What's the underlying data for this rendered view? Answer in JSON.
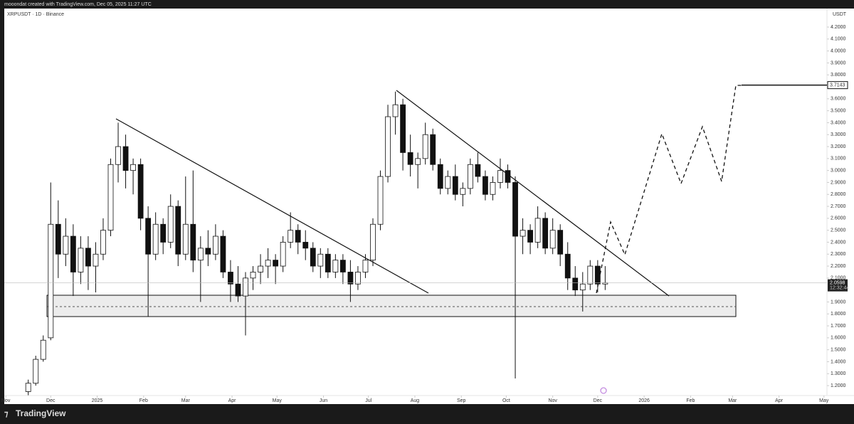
{
  "header": {
    "watermark": "mooondat created with TradingView.com, Dec 05, 2025 11:27 UTC",
    "symbol": "XRPUSDT · 1D · Binance",
    "currency": "USDT",
    "brand": "TradingView"
  },
  "chart_data": {
    "type": "candlestick",
    "x": [
      15,
      20,
      25,
      30,
      35,
      40,
      45,
      50,
      55,
      60,
      65,
      70,
      75,
      80,
      85,
      90,
      95,
      100,
      105,
      110,
      115,
      120,
      125,
      130,
      135,
      140,
      145,
      150,
      155,
      160,
      165,
      170,
      175,
      180,
      185,
      190,
      195,
      200,
      205,
      210,
      215,
      220,
      225,
      230,
      235,
      240,
      245,
      250,
      255,
      260,
      265,
      270,
      275,
      280,
      285,
      290,
      295,
      300,
      305,
      310,
      315,
      320,
      325,
      330,
      335,
      340,
      345,
      350,
      355,
      360,
      365,
      370,
      375,
      380,
      385,
      390,
      395,
      400
    ],
    "open": [
      1.15,
      1.22,
      1.42,
      1.6,
      2.55,
      2.3,
      2.45,
      2.15,
      2.35,
      2.2,
      2.3,
      2.5,
      3.05,
      3.2,
      3.0,
      3.05,
      2.6,
      2.3,
      2.55,
      2.4,
      2.7,
      2.3,
      2.55,
      2.25,
      2.35,
      2.3,
      2.45,
      2.15,
      2.05,
      1.95,
      2.1,
      2.15,
      2.2,
      2.25,
      2.2,
      2.4,
      2.5,
      2.4,
      2.35,
      2.2,
      2.3,
      2.15,
      2.25,
      2.15,
      2.05,
      2.15,
      2.25,
      2.55,
      2.95,
      3.45,
      3.55,
      3.15,
      3.05,
      3.1,
      3.3,
      3.05,
      2.85,
      2.95,
      2.8,
      2.85,
      3.05,
      2.95,
      2.8,
      2.9,
      3.0,
      2.9,
      2.45,
      2.5,
      2.4,
      2.6,
      2.35,
      2.5,
      2.3,
      2.1,
      2.0,
      2.05,
      2.2,
      2.05
    ],
    "high": [
      1.25,
      1.45,
      1.62,
      2.9,
      2.75,
      2.6,
      2.55,
      2.45,
      2.45,
      2.4,
      2.6,
      3.1,
      3.4,
      3.3,
      3.1,
      3.1,
      2.7,
      2.65,
      2.6,
      2.8,
      2.75,
      2.95,
      3.0,
      2.45,
      2.5,
      2.55,
      2.5,
      2.25,
      2.2,
      2.15,
      2.2,
      2.3,
      2.35,
      2.3,
      2.45,
      2.65,
      2.55,
      2.5,
      2.4,
      2.35,
      2.35,
      2.3,
      2.3,
      2.25,
      2.2,
      2.3,
      2.6,
      3.0,
      3.55,
      3.66,
      3.6,
      3.3,
      3.15,
      3.4,
      3.35,
      3.1,
      3.0,
      3.05,
      2.9,
      3.1,
      3.15,
      3.0,
      2.95,
      3.1,
      3.05,
      2.95,
      2.6,
      2.55,
      2.7,
      2.65,
      2.6,
      2.55,
      2.4,
      2.2,
      2.15,
      2.25,
      2.25,
      2.2
    ],
    "low": [
      1.12,
      1.2,
      1.4,
      1.58,
      2.1,
      2.2,
      1.95,
      2.05,
      2.0,
      1.98,
      2.25,
      2.45,
      2.9,
      2.85,
      2.8,
      2.5,
      1.78,
      2.25,
      2.3,
      2.35,
      2.2,
      2.25,
      2.15,
      1.9,
      2.2,
      2.25,
      2.1,
      1.9,
      1.9,
      1.62,
      2.0,
      2.05,
      2.1,
      2.05,
      2.15,
      2.35,
      2.3,
      2.25,
      2.15,
      2.1,
      2.1,
      2.1,
      2.05,
      1.9,
      2.0,
      2.1,
      2.2,
      2.5,
      2.9,
      3.3,
      3.0,
      2.95,
      2.85,
      3.05,
      3.0,
      2.8,
      2.8,
      2.75,
      2.7,
      2.8,
      2.9,
      2.75,
      2.75,
      2.85,
      2.85,
      1.26,
      2.3,
      2.3,
      2.35,
      2.3,
      2.3,
      2.2,
      2.0,
      1.95,
      1.82,
      2.0,
      1.98,
      2.0
    ],
    "close": [
      1.22,
      1.42,
      1.58,
      2.55,
      2.3,
      2.45,
      2.15,
      2.35,
      2.2,
      2.3,
      2.5,
      3.05,
      3.2,
      3.0,
      3.05,
      2.6,
      2.3,
      2.55,
      2.4,
      2.7,
      2.3,
      2.55,
      2.25,
      2.35,
      2.3,
      2.45,
      2.15,
      2.05,
      1.95,
      2.1,
      2.15,
      2.2,
      2.25,
      2.2,
      2.4,
      2.5,
      2.4,
      2.35,
      2.2,
      2.3,
      2.15,
      2.25,
      2.15,
      2.05,
      2.15,
      2.25,
      2.55,
      2.95,
      3.45,
      3.55,
      3.15,
      3.05,
      3.1,
      3.3,
      3.05,
      2.85,
      2.95,
      2.8,
      2.85,
      3.05,
      2.95,
      2.8,
      2.9,
      3.0,
      2.9,
      2.45,
      2.5,
      2.4,
      2.6,
      2.35,
      2.5,
      2.3,
      2.1,
      2.0,
      2.05,
      2.2,
      2.05,
      2.0598
    ],
    "xlim": [
      -1,
      548
    ],
    "xticks": [
      {
        "value": 0,
        "label": "Nov"
      },
      {
        "value": 30,
        "label": "Dec"
      },
      {
        "value": 61,
        "label": "2025"
      },
      {
        "value": 92,
        "label": "Feb"
      },
      {
        "value": 120,
        "label": "Mar"
      },
      {
        "value": 151,
        "label": "Apr"
      },
      {
        "value": 181,
        "label": "May"
      },
      {
        "value": 212,
        "label": "Jun"
      },
      {
        "value": 242,
        "label": "Jul"
      },
      {
        "value": 273,
        "label": "Aug"
      },
      {
        "value": 304,
        "label": "Sep"
      },
      {
        "value": 334,
        "label": "Oct"
      },
      {
        "value": 365,
        "label": "Nov"
      },
      {
        "value": 395,
        "label": "Dec"
      },
      {
        "value": 426,
        "label": "2026"
      },
      {
        "value": 457,
        "label": "Feb"
      },
      {
        "value": 485,
        "label": "Mar"
      },
      {
        "value": 516,
        "label": "Apr"
      },
      {
        "value": 546,
        "label": "May"
      }
    ],
    "ylim": [
      1.117,
      4.355
    ],
    "yticks": [
      {
        "value": 1.2,
        "label": "1.2000"
      },
      {
        "value": 1.3,
        "label": "1.3000"
      },
      {
        "value": 1.4,
        "label": "1.4000"
      },
      {
        "value": 1.5,
        "label": "1.5000"
      },
      {
        "value": 1.6,
        "label": "1.6000"
      },
      {
        "value": 1.7,
        "label": "1.7000"
      },
      {
        "value": 1.8,
        "label": "1.8000"
      },
      {
        "value": 1.9,
        "label": "1.9000"
      },
      {
        "value": 2.1,
        "label": "2.1000"
      },
      {
        "value": 2.2,
        "label": "2.2000"
      },
      {
        "value": 2.3,
        "label": "2.3000"
      },
      {
        "value": 2.4,
        "label": "2.4000"
      },
      {
        "value": 2.5,
        "label": "2.5000"
      },
      {
        "value": 2.6,
        "label": "2.6000"
      },
      {
        "value": 2.7,
        "label": "2.7000"
      },
      {
        "value": 2.8,
        "label": "2.8000"
      },
      {
        "value": 2.9,
        "label": "2.9000"
      },
      {
        "value": 3.0,
        "label": "3.0000"
      },
      {
        "value": 3.1,
        "label": "3.1000"
      },
      {
        "value": 3.2,
        "label": "3.2000"
      },
      {
        "value": 3.3,
        "label": "3.3000"
      },
      {
        "value": 3.4,
        "label": "3.4000"
      },
      {
        "value": 3.5,
        "label": "3.5000"
      },
      {
        "value": 3.6,
        "label": "3.6000"
      },
      {
        "value": 3.7,
        "label": "3.7000"
      },
      {
        "value": 3.8,
        "label": "3.8000"
      },
      {
        "value": 3.9,
        "label": "3.9000"
      },
      {
        "value": 4.0,
        "label": "4.0000"
      },
      {
        "value": 4.1,
        "label": "4.1000"
      },
      {
        "value": 4.2,
        "label": "4.2000"
      }
    ],
    "last_price": 2.0598,
    "countdown": "12:32:44",
    "target_price": 3.7143,
    "up_color": "#ffffff",
    "down_color": "#111111"
  }
}
